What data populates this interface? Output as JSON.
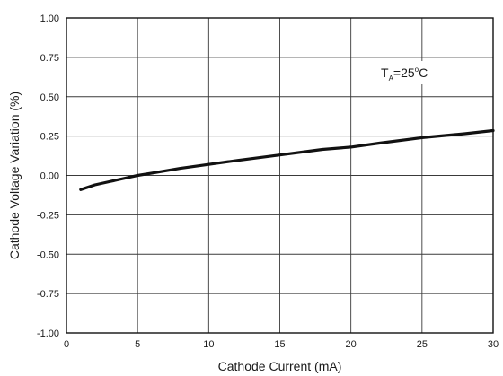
{
  "chart_data": {
    "type": "line",
    "title": "",
    "xlabel": "Cathode Current (mA)",
    "ylabel": "Cathode Voltage Variation (%)",
    "xlim": [
      0,
      30
    ],
    "ylim": [
      -1.0,
      1.0
    ],
    "xticks": [
      0,
      5,
      10,
      15,
      20,
      25,
      30
    ],
    "xtick_labels": [
      "0",
      "5",
      "10",
      "15",
      "20",
      "25",
      "30"
    ],
    "yticks": [
      1.0,
      0.75,
      0.5,
      0.25,
      0.0,
      -0.25,
      -0.5,
      -0.75,
      -1.0
    ],
    "ytick_labels": [
      "1.00",
      "0.75",
      "0.50",
      "0.25",
      "0.00",
      "-0.25",
      "-0.50",
      "-0.75",
      "-1.00"
    ],
    "grid": true,
    "annotation": {
      "main": "T",
      "sub": "A",
      "rest": "=25",
      "sup": "o",
      "unit": "C"
    },
    "series": [
      {
        "x": [
          1,
          2,
          3,
          4,
          5,
          6,
          8,
          10,
          12,
          15,
          18,
          20,
          22,
          25,
          28,
          30
        ],
        "y": [
          -0.09,
          -0.06,
          -0.04,
          -0.02,
          0.0,
          0.015,
          0.045,
          0.07,
          0.095,
          0.13,
          0.165,
          0.18,
          0.205,
          0.24,
          0.265,
          0.285
        ]
      }
    ],
    "colors": {
      "line": "#111111",
      "grid": "#3a3a3a",
      "frame": "#111111"
    }
  }
}
